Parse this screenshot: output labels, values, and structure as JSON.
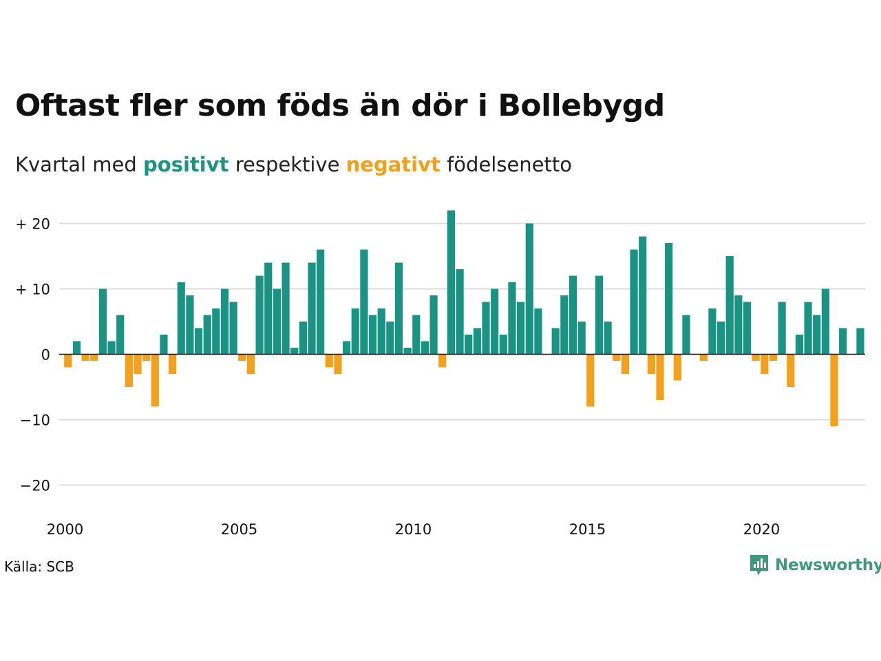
{
  "header": {
    "title": "Oftast fler som föds än dör i Bollebygd",
    "subtitle_prefix": "Kvartal med ",
    "subtitle_positive": "positivt",
    "subtitle_middle": " respektive ",
    "subtitle_negative": "negativt",
    "subtitle_suffix": " födelsenetto"
  },
  "footer": {
    "source": "Källa: SCB",
    "logo_text": "Newsworthy"
  },
  "colors": {
    "positive": "#1a9482",
    "negative": "#f5a01a",
    "grid": "#dddddd",
    "zero_line": "#111111"
  },
  "icons": {
    "logo": "newsworthy-chart-bubble-icon"
  },
  "chart_data": {
    "type": "bar",
    "title": "Oftast fler som föds än dör i Bollebygd",
    "subtitle": "Kvartal med positivt respektive negativt födelsenetto",
    "xlabel": "",
    "ylabel": "",
    "ylim": [
      -24,
      24
    ],
    "yticks": [
      20,
      10,
      0,
      -10,
      -20
    ],
    "ytick_labels": [
      "+ 20",
      "+ 10",
      "0",
      "−10",
      "−20"
    ],
    "xticks": [
      "2000",
      "2005",
      "2010",
      "2015",
      "2020"
    ],
    "grid": true,
    "start": {
      "year": 2000,
      "quarter": 1
    },
    "values": [
      -2,
      2,
      -1,
      -1,
      10,
      2,
      6,
      -5,
      -3,
      -1,
      -8,
      3,
      -3,
      11,
      9,
      4,
      6,
      7,
      10,
      8,
      -1,
      -3,
      12,
      14,
      10,
      14,
      1,
      5,
      14,
      16,
      -2,
      -3,
      2,
      7,
      16,
      6,
      7,
      5,
      14,
      1,
      6,
      2,
      9,
      -2,
      22,
      13,
      3,
      4,
      8,
      10,
      3,
      11,
      8,
      20,
      7,
      0,
      4,
      9,
      12,
      5,
      -8,
      12,
      5,
      -1,
      -3,
      16,
      18,
      -3,
      -7,
      17,
      -4,
      6,
      0,
      -1,
      7,
      5,
      15,
      9,
      8,
      -1,
      -3,
      -1,
      8,
      -5,
      3,
      8,
      6,
      10,
      -11,
      4,
      0,
      4
    ]
  }
}
